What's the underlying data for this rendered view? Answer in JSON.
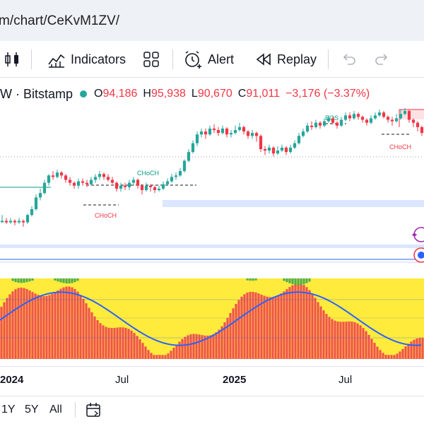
{
  "browser": {
    "url": "m/chart/CeKvM1ZV/"
  },
  "toolbar": {
    "indicators_label": "Indicators",
    "alert_label": "Alert",
    "replay_label": "Replay"
  },
  "symbol": {
    "interval_exchange": "W · Bitstamp",
    "open_label": "O",
    "open": "94,186",
    "high_label": "H",
    "high": "95,938",
    "low_label": "L",
    "low": "90,670",
    "close_label": "C",
    "close": "91,011",
    "change": "−3,176 (−3.37%)"
  },
  "annotations": {
    "bos": "BOS",
    "choch_1": "CHoCH",
    "choch_2": "CHoCH",
    "choch_3": "CHoCH"
  },
  "time_axis": [
    "2024",
    "Jul",
    "2025",
    "Jul"
  ],
  "ranges": [
    "1Y",
    "5Y",
    "All"
  ],
  "colors": {
    "up": "#26a69a",
    "down": "#f23645",
    "osc_red": "#ef5350",
    "osc_yellow": "#ffeb3b",
    "osc_green": "#4caf50",
    "osc_line": "#2962ff"
  },
  "candles": [
    [
      35,
      36,
      40,
      35
    ],
    [
      36,
      35,
      38,
      34
    ],
    [
      35,
      36,
      38,
      34
    ],
    [
      36,
      35,
      37,
      33
    ],
    [
      35,
      36,
      38,
      34
    ],
    [
      36,
      35,
      37,
      32
    ],
    [
      35,
      40,
      41,
      34
    ],
    [
      40,
      44,
      46,
      39
    ],
    [
      44,
      52,
      54,
      43
    ],
    [
      52,
      55,
      58,
      50
    ],
    [
      55,
      62,
      64,
      54
    ],
    [
      62,
      67,
      68,
      60
    ],
    [
      67,
      66,
      70,
      64
    ],
    [
      66,
      69,
      71,
      65
    ],
    [
      69,
      67,
      70,
      65
    ],
    [
      67,
      64,
      68,
      62
    ],
    [
      64,
      62,
      66,
      60
    ],
    [
      62,
      60,
      63,
      58
    ],
    [
      60,
      63,
      65,
      58
    ],
    [
      63,
      62,
      65,
      60
    ],
    [
      62,
      61,
      64,
      59
    ],
    [
      61,
      64,
      66,
      60
    ],
    [
      64,
      66,
      68,
      62
    ],
    [
      66,
      68,
      70,
      64
    ],
    [
      68,
      66,
      69,
      64
    ],
    [
      66,
      64,
      68,
      63
    ],
    [
      64,
      62,
      66,
      61
    ],
    [
      62,
      58,
      63,
      56
    ],
    [
      58,
      60,
      62,
      56
    ],
    [
      60,
      59,
      62,
      57
    ],
    [
      59,
      62,
      64,
      57
    ],
    [
      62,
      64,
      66,
      60
    ],
    [
      64,
      60,
      65,
      58
    ],
    [
      60,
      57,
      61,
      54
    ],
    [
      57,
      60,
      62,
      56
    ],
    [
      60,
      59,
      61,
      56
    ],
    [
      59,
      57,
      60,
      55
    ],
    [
      57,
      58,
      60,
      56
    ],
    [
      58,
      61,
      63,
      57
    ],
    [
      61,
      63,
      65,
      60
    ],
    [
      63,
      66,
      68,
      62
    ],
    [
      66,
      67,
      69,
      64
    ],
    [
      67,
      70,
      72,
      66
    ],
    [
      70,
      77,
      78,
      69
    ],
    [
      77,
      83,
      85,
      76
    ],
    [
      83,
      89,
      91,
      82
    ],
    [
      89,
      95,
      97,
      87
    ],
    [
      95,
      97,
      99,
      93
    ],
    [
      97,
      95,
      99,
      92
    ],
    [
      95,
      99,
      101,
      94
    ],
    [
      99,
      98,
      102,
      96
    ],
    [
      98,
      96,
      100,
      94
    ],
    [
      96,
      99,
      101,
      95
    ],
    [
      99,
      95,
      100,
      93
    ],
    [
      95,
      96,
      98,
      93
    ],
    [
      96,
      98,
      101,
      95
    ],
    [
      98,
      100,
      103,
      97
    ],
    [
      100,
      97,
      101,
      95
    ],
    [
      97,
      94,
      98,
      92
    ],
    [
      94,
      96,
      98,
      92
    ],
    [
      96,
      94,
      97,
      90
    ],
    [
      94,
      85,
      95,
      83
    ],
    [
      85,
      84,
      87,
      81
    ],
    [
      84,
      86,
      88,
      82
    ],
    [
      86,
      82,
      87,
      80
    ],
    [
      82,
      84,
      87,
      81
    ],
    [
      84,
      86,
      88,
      83
    ],
    [
      86,
      83,
      87,
      81
    ],
    [
      83,
      86,
      88,
      82
    ],
    [
      86,
      89,
      91,
      85
    ],
    [
      89,
      94,
      96,
      88
    ],
    [
      94,
      97,
      99,
      93
    ],
    [
      97,
      101,
      103,
      96
    ],
    [
      101,
      100,
      104,
      98
    ],
    [
      100,
      103,
      105,
      99
    ],
    [
      103,
      101,
      104,
      99
    ],
    [
      101,
      104,
      106,
      100
    ],
    [
      104,
      106,
      108,
      103
    ],
    [
      106,
      103,
      107,
      102
    ],
    [
      103,
      101,
      104,
      99
    ],
    [
      101,
      105,
      107,
      100
    ],
    [
      105,
      108,
      110,
      104
    ],
    [
      108,
      106,
      110,
      104
    ],
    [
      106,
      109,
      111,
      105
    ],
    [
      109,
      107,
      110,
      105
    ],
    [
      107,
      105,
      108,
      103
    ],
    [
      105,
      103,
      106,
      101
    ],
    [
      103,
      106,
      108,
      102
    ],
    [
      106,
      108,
      110,
      105
    ],
    [
      108,
      110,
      112,
      107
    ],
    [
      110,
      107,
      111,
      106
    ],
    [
      107,
      105,
      108,
      103
    ],
    [
      105,
      104,
      107,
      101
    ],
    [
      104,
      106,
      109,
      103
    ],
    [
      106,
      109,
      112,
      105
    ],
    [
      109,
      111,
      113,
      108
    ],
    [
      111,
      105,
      112,
      103
    ],
    [
      105,
      103,
      106,
      100
    ],
    [
      103,
      100,
      104,
      97
    ],
    [
      100,
      96,
      101,
      94
    ]
  ]
}
